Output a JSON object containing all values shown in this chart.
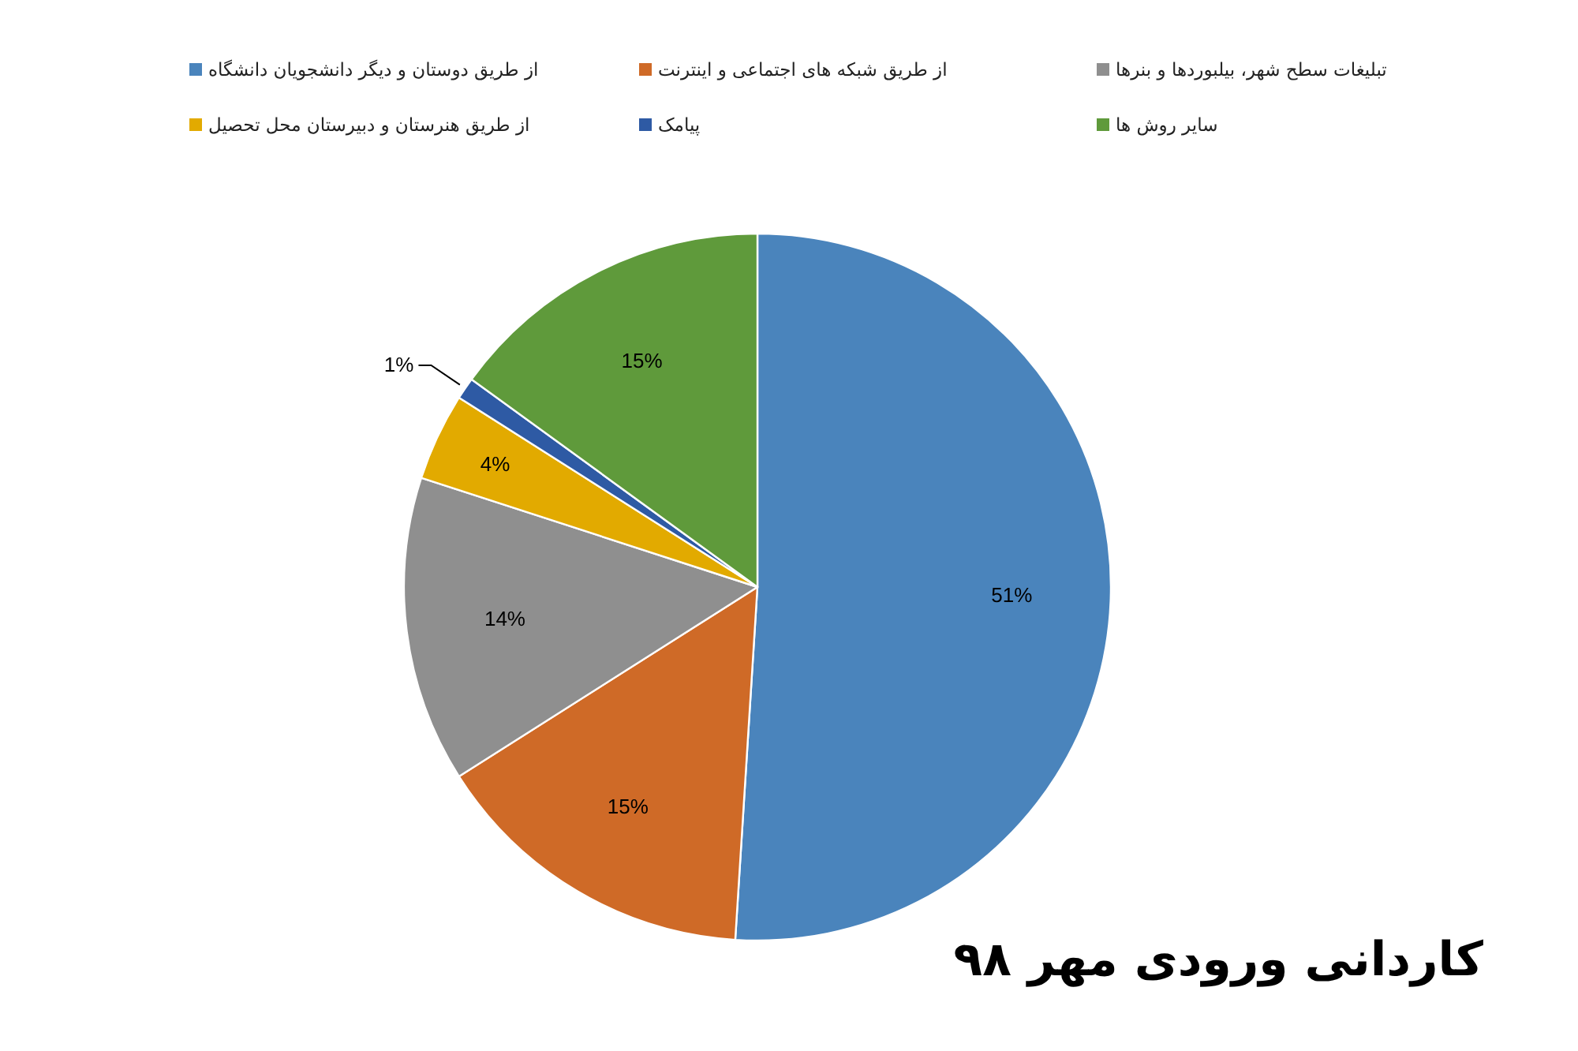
{
  "chart_data": {
    "type": "pie",
    "title": "کاردانی ورودی مهر ۹۸",
    "categories": [
      "از طریق دوستان و دیگر دانشجویان دانشگاه",
      "از طریق شبکه های اجتماعی و اینترنت",
      "تبلیغات سطح شهر، بیلبوردها و بنرها",
      "از طریق هنرستان و دبیرستان محل تحصیل",
      "پیامک",
      "سایر روش ها"
    ],
    "values": [
      51,
      15,
      14,
      4,
      1,
      15
    ],
    "colors": [
      "#4a84bc",
      "#cf6a27",
      "#8f8f8f",
      "#e2aa00",
      "#2e5aa4",
      "#5f9a3b"
    ],
    "value_labels": [
      "51%",
      "15%",
      "14%",
      "4%",
      "1%",
      "15%"
    ],
    "legend": "top"
  }
}
